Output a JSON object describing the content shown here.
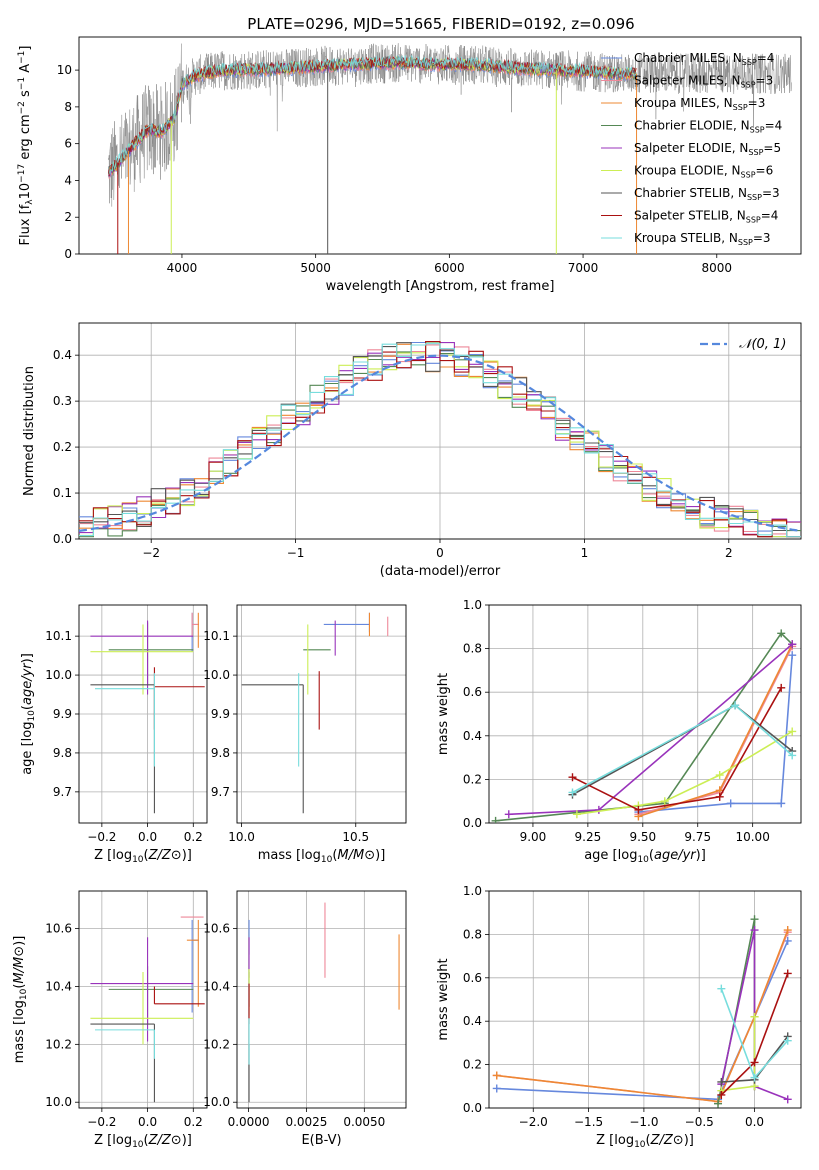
{
  "figure_title": "PLATE=0296, MJD=51665, FIBERID=0192, z=0.096",
  "colors": {
    "chabrier_miles": "#6688dd",
    "salpeter_miles": "#ee8899",
    "kroupa_miles": "#ee8833",
    "chabrier_elodie": "#558855",
    "salpeter_elodie": "#9933bb",
    "kroupa_elodie": "#ccee55",
    "chabrier_stelib": "#555555",
    "salpeter_stelib": "#aa1111",
    "kroupa_stelib": "#77dddd",
    "data": "#888888",
    "gaussian": "#5588dd"
  },
  "chart_data": [
    {
      "type": "line",
      "name": "spectrum",
      "xlabel": "wavelength [Angstrom, rest frame]",
      "ylabel": "Flux [f_λ 10^-17 erg cm^-2 s^-1 A^-1]",
      "xlim": [
        3230,
        8630
      ],
      "ylim": [
        0,
        11.8
      ],
      "xticks": [
        4000,
        5000,
        6000,
        7000,
        8000
      ],
      "yticks": [
        0,
        2,
        4,
        6,
        8,
        10
      ],
      "grid": false,
      "legend_position": "right",
      "legend": [
        {
          "key": "chabrier_miles",
          "label": "Chabrier MILES, N",
          "sub": "SSP",
          "suffix": "=4"
        },
        {
          "key": "salpeter_miles",
          "label": "Salpeter MILES, N",
          "sub": "SSP",
          "suffix": "=3"
        },
        {
          "key": "kroupa_miles",
          "label": "Kroupa MILES, N",
          "sub": "SSP",
          "suffix": "=3"
        },
        {
          "key": "chabrier_elodie",
          "label": "Chabrier ELODIE, N",
          "sub": "SSP",
          "suffix": "=4"
        },
        {
          "key": "salpeter_elodie",
          "label": "Salpeter ELODIE, N",
          "sub": "SSP",
          "suffix": "=5"
        },
        {
          "key": "kroupa_elodie",
          "label": "Kroupa ELODIE, N",
          "sub": "SSP",
          "suffix": "=6"
        },
        {
          "key": "chabrier_stelib",
          "label": "Chabrier STELIB, N",
          "sub": "SSP",
          "suffix": "=3"
        },
        {
          "key": "salpeter_stelib",
          "label": "Salpeter STELIB, N",
          "sub": "SSP",
          "suffix": "=4"
        },
        {
          "key": "kroupa_stelib",
          "label": "Kroupa STELIB, N",
          "sub": "SSP",
          "suffix": "=3"
        }
      ],
      "continuum": [
        [
          3450,
          4.4
        ],
        [
          3550,
          5.2
        ],
        [
          3650,
          6.0
        ],
        [
          3750,
          6.8
        ],
        [
          3850,
          6.6
        ],
        [
          3950,
          7.5
        ],
        [
          4000,
          9.2
        ],
        [
          4100,
          9.7
        ],
        [
          4300,
          10.0
        ],
        [
          4500,
          10.0
        ],
        [
          4800,
          10.1
        ],
        [
          5000,
          10.2
        ],
        [
          5300,
          10.3
        ],
        [
          5600,
          10.4
        ],
        [
          5900,
          10.3
        ],
        [
          6200,
          10.3
        ],
        [
          6500,
          10.1
        ],
        [
          6800,
          10.0
        ],
        [
          7100,
          9.9
        ],
        [
          7300,
          9.8
        ],
        [
          7500,
          9.8
        ]
      ],
      "model_end_A": 7400,
      "data_end_A": 8560
    },
    {
      "type": "step",
      "name": "residual_histogram",
      "xlabel": "(data-model)/error",
      "ylabel": "Normed distribution",
      "xlim": [
        -2.5,
        2.5
      ],
      "ylim": [
        0,
        0.47
      ],
      "xticks": [
        -2,
        -1,
        0,
        1,
        2
      ],
      "yticks": [
        0.0,
        0.1,
        0.2,
        0.3,
        0.4
      ],
      "grid": true,
      "legend_position": "top-right",
      "legend_label": "𝒩(0, 1)",
      "bin_width": 0.1,
      "hist_peak": 0.4
    },
    {
      "type": "scatter",
      "name": "Z_vs_age",
      "xlabel": "Z [log10(Z/Z⊙)]",
      "ylabel": "age [log10(age/yr)]",
      "xlim": [
        -0.3,
        0.26
      ],
      "ylim": [
        9.62,
        10.18
      ],
      "xticks": [
        -0.2,
        0.0,
        0.2
      ],
      "yticks": [
        9.7,
        9.8,
        9.9,
        10.0,
        10.1
      ],
      "grid": true,
      "points": [
        {
          "key": "chabrier_miles",
          "x": 0.195,
          "y": 10.13,
          "xerr": [
            0.0,
            0.03
          ],
          "yerr": [
            0.07,
            0.03
          ]
        },
        {
          "key": "salpeter_miles",
          "x": 0.195,
          "y": 10.13,
          "xerr": [
            0.0,
            0.03
          ],
          "yerr": [
            0.03,
            0.03
          ]
        },
        {
          "key": "kroupa_miles",
          "x": 0.222,
          "y": 10.13,
          "xerr": [
            0.0,
            0.0
          ],
          "yerr": [
            0.06,
            0.03
          ]
        },
        {
          "key": "chabrier_elodie",
          "x": 0.0,
          "y": 10.065,
          "xerr": [
            0.17,
            0.2
          ],
          "yerr": [
            0.09,
            0.07
          ]
        },
        {
          "key": "salpeter_elodie",
          "x": 0.0,
          "y": 10.1,
          "xerr": [
            0.25,
            0.2
          ],
          "yerr": [
            0.15,
            0.04
          ]
        },
        {
          "key": "kroupa_elodie",
          "x": -0.02,
          "y": 10.06,
          "xerr": [
            0.23,
            0.22
          ],
          "yerr": [
            0.11,
            0.07
          ]
        },
        {
          "key": "chabrier_stelib",
          "x": 0.03,
          "y": 9.975,
          "xerr": [
            0.28,
            0.0
          ],
          "yerr": [
            0.33,
            0.0
          ]
        },
        {
          "key": "salpeter_stelib",
          "x": 0.03,
          "y": 9.97,
          "xerr": [
            0.0,
            0.22
          ],
          "yerr": [
            0.11,
            0.05
          ]
        },
        {
          "key": "kroupa_stelib",
          "x": 0.03,
          "y": 9.965,
          "xerr": [
            0.26,
            0.0
          ],
          "yerr": [
            0.2,
            0.04
          ]
        }
      ]
    },
    {
      "type": "scatter",
      "name": "mass_vs_age",
      "xlabel": "mass [log10(M/M⊙)]",
      "ylabel": "",
      "xlim": [
        9.98,
        10.72
      ],
      "ylim": [
        9.62,
        10.18
      ],
      "xticks": [
        10.0,
        10.5
      ],
      "yticks": [
        9.7,
        9.8,
        9.9,
        10.0,
        10.1
      ],
      "grid": true,
      "points": [
        {
          "key": "chabrier_miles",
          "x": 10.56,
          "y": 10.13,
          "xerr": [
            0.2,
            0.0
          ],
          "yerr": [
            0.02,
            0.03
          ]
        },
        {
          "key": "salpeter_miles",
          "x": 10.64,
          "y": 10.13,
          "xerr": [
            0.0,
            0.0
          ],
          "yerr": [
            0.03,
            0.02
          ]
        },
        {
          "key": "kroupa_miles",
          "x": 10.56,
          "y": 10.13,
          "xerr": [
            0.0,
            0.0
          ],
          "yerr": [
            0.03,
            0.03
          ]
        },
        {
          "key": "chabrier_elodie",
          "x": 10.39,
          "y": 10.065,
          "xerr": [
            0.12,
            0.0
          ],
          "yerr": [
            0.0,
            0.0
          ]
        },
        {
          "key": "salpeter_elodie",
          "x": 10.41,
          "y": 10.1,
          "xerr": [
            0.0,
            0.0
          ],
          "yerr": [
            0.05,
            0.04
          ]
        },
        {
          "key": "kroupa_elodie",
          "x": 10.29,
          "y": 10.06,
          "xerr": [
            0.0,
            0.0
          ],
          "yerr": [
            0.11,
            0.07
          ]
        },
        {
          "key": "chabrier_stelib",
          "x": 10.27,
          "y": 9.975,
          "xerr": [
            0.27,
            0.0
          ],
          "yerr": [
            0.33,
            0.0
          ]
        },
        {
          "key": "salpeter_stelib",
          "x": 10.34,
          "y": 9.97,
          "xerr": [
            0.0,
            0.0
          ],
          "yerr": [
            0.11,
            0.04
          ]
        },
        {
          "key": "kroupa_stelib",
          "x": 10.25,
          "y": 9.965,
          "xerr": [
            0.0,
            0.0
          ],
          "yerr": [
            0.2,
            0.04
          ]
        }
      ]
    },
    {
      "type": "line",
      "name": "age_vs_mass_weight",
      "xlabel": "age [log10(age/yr)]",
      "ylabel": "mass weight",
      "xlim": [
        8.8,
        10.22
      ],
      "ylim": [
        0.0,
        1.0
      ],
      "xticks": [
        9.0,
        9.25,
        9.5,
        9.75,
        10.0
      ],
      "yticks": [
        0.0,
        0.2,
        0.4,
        0.6,
        0.8,
        1.0
      ],
      "grid": true,
      "series": [
        {
          "key": "chabrier_miles",
          "x": [
            9.48,
            9.9,
            10.13,
            10.18
          ],
          "y": [
            0.05,
            0.09,
            0.09,
            0.77
          ]
        },
        {
          "key": "salpeter_miles",
          "x": [
            9.48,
            9.85,
            10.18
          ],
          "y": [
            0.04,
            0.14,
            0.81
          ]
        },
        {
          "key": "kroupa_miles",
          "x": [
            9.48,
            9.85,
            10.18
          ],
          "y": [
            0.03,
            0.15,
            0.82
          ]
        },
        {
          "key": "chabrier_elodie",
          "x": [
            8.83,
            9.6,
            10.13,
            10.18
          ],
          "y": [
            0.01,
            0.09,
            0.87,
            0.82
          ]
        },
        {
          "key": "salpeter_elodie",
          "x": [
            8.89,
            9.3,
            10.18
          ],
          "y": [
            0.04,
            0.06,
            0.82
          ]
        },
        {
          "key": "kroupa_elodie",
          "x": [
            9.2,
            9.48,
            9.6,
            9.85,
            10.18
          ],
          "y": [
            0.04,
            0.08,
            0.1,
            0.22,
            0.42
          ]
        },
        {
          "key": "chabrier_stelib",
          "x": [
            9.18,
            9.92,
            10.18
          ],
          "y": [
            0.13,
            0.54,
            0.33
          ]
        },
        {
          "key": "salpeter_stelib",
          "x": [
            9.18,
            9.48,
            9.85,
            10.13
          ],
          "y": [
            0.21,
            0.06,
            0.12,
            0.62
          ]
        },
        {
          "key": "kroupa_stelib",
          "x": [
            9.18,
            9.92,
            10.18
          ],
          "y": [
            0.14,
            0.54,
            0.31
          ]
        }
      ]
    },
    {
      "type": "scatter",
      "name": "Z_vs_mass",
      "xlabel": "Z [log10(Z/Z⊙)]",
      "ylabel": "mass [log10(M/M⊙)]",
      "xlim": [
        -0.3,
        0.26
      ],
      "ylim": [
        9.98,
        10.73
      ],
      "xticks": [
        -0.2,
        0.0,
        0.2
      ],
      "yticks": [
        10.0,
        10.2,
        10.4,
        10.6
      ],
      "grid": true,
      "points": [
        {
          "key": "chabrier_miles",
          "x": 0.195,
          "y": 10.56,
          "xerr": [
            0.0,
            0.03
          ],
          "yerr": [
            0.25,
            0.07
          ]
        },
        {
          "key": "salpeter_miles",
          "x": 0.195,
          "y": 10.64,
          "xerr": [
            0.05,
            0.05
          ],
          "yerr": [
            0.0,
            0.0
          ]
        },
        {
          "key": "kroupa_miles",
          "x": 0.222,
          "y": 10.56,
          "xerr": [
            0.05,
            0.0
          ],
          "yerr": [
            0.23,
            0.07
          ]
        },
        {
          "key": "chabrier_elodie",
          "x": 0.0,
          "y": 10.39,
          "xerr": [
            0.17,
            0.2
          ],
          "yerr": [
            0.12,
            0.08
          ]
        },
        {
          "key": "salpeter_elodie",
          "x": 0.0,
          "y": 10.41,
          "xerr": [
            0.25,
            0.2
          ],
          "yerr": [
            0.2,
            0.16
          ]
        },
        {
          "key": "kroupa_elodie",
          "x": -0.02,
          "y": 10.29,
          "xerr": [
            0.23,
            0.22
          ],
          "yerr": [
            0.09,
            0.16
          ]
        },
        {
          "key": "chabrier_stelib",
          "x": 0.03,
          "y": 10.27,
          "xerr": [
            0.28,
            0.0
          ],
          "yerr": [
            0.27,
            0.0
          ]
        },
        {
          "key": "salpeter_stelib",
          "x": 0.03,
          "y": 10.34,
          "xerr": [
            0.0,
            0.22
          ],
          "yerr": [
            0.0,
            0.06
          ]
        },
        {
          "key": "kroupa_stelib",
          "x": 0.03,
          "y": 10.25,
          "xerr": [
            0.26,
            0.0
          ],
          "yerr": [
            0.1,
            0.0
          ]
        }
      ]
    },
    {
      "type": "scatter",
      "name": "EBV_vs_mass",
      "xlabel": "E(B-V)",
      "ylabel": "",
      "xlim": [
        -0.0005,
        0.0068
      ],
      "ylim": [
        9.98,
        10.73
      ],
      "xticks": [
        0.0,
        0.0025,
        0.005
      ],
      "xtick_labels": [
        "0.0000",
        "0.0025",
        "0.0050"
      ],
      "yticks": [
        10.0,
        10.2,
        10.4,
        10.6
      ],
      "grid": true,
      "points": [
        {
          "key": "chabrier_miles",
          "x": 2e-05,
          "y": 10.56,
          "yerr": [
            0.05,
            0.07
          ]
        },
        {
          "key": "salpeter_miles",
          "x": 0.0033,
          "y": 10.56,
          "yerr": [
            0.13,
            0.13
          ]
        },
        {
          "key": "kroupa_miles",
          "x": 0.0065,
          "y": 10.45,
          "yerr": [
            0.13,
            0.13
          ]
        },
        {
          "key": "chabrier_elodie",
          "x": 2e-05,
          "y": 10.39,
          "yerr": [
            0.06,
            0.06
          ]
        },
        {
          "key": "salpeter_elodie",
          "x": 2e-05,
          "y": 10.5,
          "yerr": [
            0.07,
            0.07
          ]
        },
        {
          "key": "kroupa_elodie",
          "x": 2e-05,
          "y": 10.38,
          "yerr": [
            0.08,
            0.08
          ]
        },
        {
          "key": "chabrier_stelib",
          "x": 2e-05,
          "y": 10.1,
          "yerr": [
            0.1,
            0.1
          ]
        },
        {
          "key": "salpeter_stelib",
          "x": 2e-05,
          "y": 10.34,
          "yerr": [
            0.07,
            0.07
          ]
        },
        {
          "key": "kroupa_stelib",
          "x": 2e-05,
          "y": 10.21,
          "yerr": [
            0.08,
            0.08
          ]
        }
      ]
    },
    {
      "type": "line",
      "name": "Z_vs_mass_weight",
      "xlabel": "Z [log10(Z/Z⊙)]",
      "ylabel": "mass weight",
      "xlim": [
        -2.4,
        0.42
      ],
      "ylim": [
        0.0,
        1.0
      ],
      "xticks": [
        -2.0,
        -1.5,
        -1.0,
        -0.5,
        0.0
      ],
      "yticks": [
        0.0,
        0.2,
        0.4,
        0.6,
        0.8,
        1.0
      ],
      "grid": true,
      "series": [
        {
          "key": "chabrier_miles",
          "x": [
            -2.33,
            -0.33,
            0.0,
            0.3
          ],
          "y": [
            0.09,
            0.04,
            0.42,
            0.77
          ]
        },
        {
          "key": "salpeter_miles",
          "x": [
            -2.33,
            -0.33,
            0.0,
            0.3
          ],
          "y": [
            0.15,
            0.03,
            0.42,
            0.81
          ]
        },
        {
          "key": "kroupa_miles",
          "x": [
            -2.33,
            -0.33,
            0.0,
            0.3
          ],
          "y": [
            0.15,
            0.03,
            0.42,
            0.82
          ]
        },
        {
          "key": "chabrier_elodie",
          "x": [
            -0.33,
            0.0,
            0.0
          ],
          "y": [
            0.02,
            0.87,
            0.1
          ]
        },
        {
          "key": "salpeter_elodie",
          "x": [
            -0.3,
            0.0,
            0.0,
            0.3
          ],
          "y": [
            0.11,
            0.82,
            0.1,
            0.04
          ]
        },
        {
          "key": "kroupa_elodie",
          "x": [
            -0.3,
            0.0,
            0.0
          ],
          "y": [
            0.08,
            0.1,
            0.42
          ]
        },
        {
          "key": "chabrier_stelib",
          "x": [
            -0.3,
            0.0,
            0.3
          ],
          "y": [
            0.12,
            0.13,
            0.33
          ]
        },
        {
          "key": "salpeter_stelib",
          "x": [
            -0.3,
            0.0,
            0.3
          ],
          "y": [
            0.06,
            0.21,
            0.62
          ]
        },
        {
          "key": "kroupa_stelib",
          "x": [
            -0.3,
            0.0,
            0.3
          ],
          "y": [
            0.55,
            0.14,
            0.31
          ]
        }
      ]
    }
  ]
}
